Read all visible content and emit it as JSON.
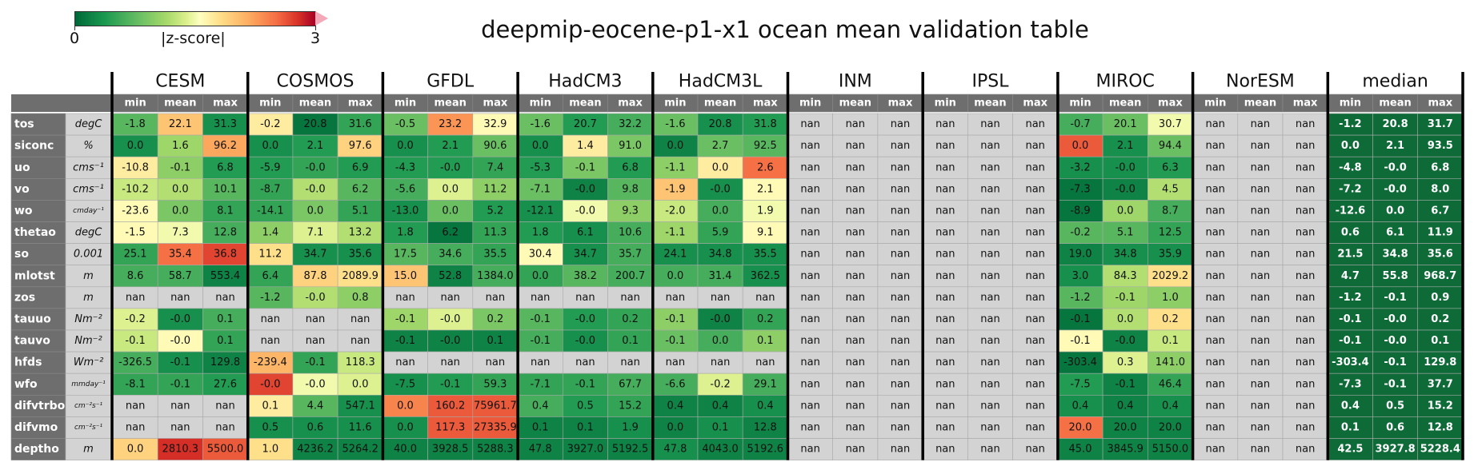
{
  "chart_data": {
    "type": "table",
    "title": "deepmip-eocene-p1-x1 ocean mean validation table",
    "colorbar": {
      "label": "|z-score|",
      "min": "0",
      "max": "3"
    },
    "models": [
      "CESM",
      "COSMOS",
      "GFDL",
      "HadCM3",
      "HadCM3L",
      "INM",
      "IPSL",
      "MIROC",
      "NorESM",
      "median"
    ],
    "stats": [
      "min",
      "mean",
      "max"
    ],
    "rows": [
      {
        "var": "tos",
        "unit": "degC"
      },
      {
        "var": "siconc",
        "unit": "%"
      },
      {
        "var": "uo",
        "unit": "cms⁻¹"
      },
      {
        "var": "vo",
        "unit": "cms⁻¹"
      },
      {
        "var": "wo",
        "unit": "cmday⁻¹"
      },
      {
        "var": "thetao",
        "unit": "degC"
      },
      {
        "var": "so",
        "unit": "0.001"
      },
      {
        "var": "mlotst",
        "unit": "m"
      },
      {
        "var": "zos",
        "unit": "m"
      },
      {
        "var": "tauuo",
        "unit": "Nm⁻²"
      },
      {
        "var": "tauvo",
        "unit": "Nm⁻²"
      },
      {
        "var": "hfds",
        "unit": "Wm⁻²"
      },
      {
        "var": "wfo",
        "unit": "mmday⁻¹"
      },
      {
        "var": "difvtrbo",
        "unit": "cm⁻²s⁻¹"
      },
      {
        "var": "difvmo",
        "unit": "cm⁻²s⁻¹"
      },
      {
        "var": "deptho",
        "unit": "m"
      }
    ],
    "values": {
      "CESM": [
        [
          "-1.8",
          "22.1",
          "31.3"
        ],
        [
          "0.0",
          "1.6",
          "96.2"
        ],
        [
          "-10.8",
          "-0.1",
          "6.8"
        ],
        [
          "-10.2",
          "0.0",
          "10.1"
        ],
        [
          "-23.6",
          "0.0",
          "8.1"
        ],
        [
          "-1.5",
          "7.3",
          "12.8"
        ],
        [
          "25.1",
          "35.4",
          "36.8"
        ],
        [
          "8.6",
          "58.7",
          "553.4"
        ],
        [
          "nan",
          "nan",
          "nan"
        ],
        [
          "-0.2",
          "-0.0",
          "0.1"
        ],
        [
          "-0.1",
          "-0.0",
          "0.1"
        ],
        [
          "-326.5",
          "-0.1",
          "129.8"
        ],
        [
          "-8.1",
          "-0.1",
          "27.6"
        ],
        [
          "nan",
          "nan",
          "nan"
        ],
        [
          "nan",
          "nan",
          "nan"
        ],
        [
          "0.0",
          "2810.3",
          "5500.0"
        ]
      ],
      "COSMOS": [
        [
          "-0.2",
          "20.8",
          "31.6"
        ],
        [
          "0.0",
          "2.1",
          "97.6"
        ],
        [
          "-5.9",
          "-0.0",
          "6.9"
        ],
        [
          "-8.7",
          "-0.0",
          "6.2"
        ],
        [
          "-14.1",
          "0.0",
          "5.1"
        ],
        [
          "1.4",
          "7.1",
          "13.2"
        ],
        [
          "11.2",
          "34.7",
          "35.6"
        ],
        [
          "6.4",
          "87.8",
          "2089.9"
        ],
        [
          "-1.2",
          "-0.0",
          "0.8"
        ],
        [
          "nan",
          "nan",
          "nan"
        ],
        [
          "nan",
          "nan",
          "nan"
        ],
        [
          "-239.4",
          "-0.1",
          "118.3"
        ],
        [
          "-0.0",
          "-0.0",
          "0.0"
        ],
        [
          "0.1",
          "4.4",
          "547.1"
        ],
        [
          "0.5",
          "0.6",
          "11.6"
        ],
        [
          "1.0",
          "4236.2",
          "5264.2"
        ]
      ],
      "GFDL": [
        [
          "-0.5",
          "23.2",
          "32.9"
        ],
        [
          "0.0",
          "2.1",
          "90.6"
        ],
        [
          "-4.3",
          "-0.0",
          "7.4"
        ],
        [
          "-5.6",
          "0.0",
          "11.2"
        ],
        [
          "-13.0",
          "0.0",
          "5.2"
        ],
        [
          "1.8",
          "6.2",
          "11.3"
        ],
        [
          "17.5",
          "34.6",
          "35.5"
        ],
        [
          "15.0",
          "52.8",
          "1384.0"
        ],
        [
          "nan",
          "nan",
          "nan"
        ],
        [
          "-0.1",
          "-0.0",
          "0.2"
        ],
        [
          "-0.1",
          "-0.0",
          "0.1"
        ],
        [
          "nan",
          "nan",
          "nan"
        ],
        [
          "-7.5",
          "-0.1",
          "59.3"
        ],
        [
          "0.0",
          "160.2",
          "75961.7"
        ],
        [
          "0.0",
          "117.3",
          "27335.9"
        ],
        [
          "40.0",
          "3928.5",
          "5288.3"
        ]
      ],
      "HadCM3": [
        [
          "-1.6",
          "20.7",
          "32.2"
        ],
        [
          "0.0",
          "1.4",
          "91.0"
        ],
        [
          "-5.3",
          "-0.1",
          "6.8"
        ],
        [
          "-7.1",
          "-0.0",
          "9.8"
        ],
        [
          "-12.1",
          "-0.0",
          "9.3"
        ],
        [
          "1.8",
          "6.1",
          "10.6"
        ],
        [
          "30.4",
          "34.7",
          "35.7"
        ],
        [
          "0.0",
          "38.2",
          "200.7"
        ],
        [
          "nan",
          "nan",
          "nan"
        ],
        [
          "-0.1",
          "-0.0",
          "0.2"
        ],
        [
          "-0.1",
          "-0.0",
          "0.1"
        ],
        [
          "nan",
          "nan",
          "nan"
        ],
        [
          "-7.1",
          "-0.1",
          "67.7"
        ],
        [
          "0.4",
          "0.5",
          "15.2"
        ],
        [
          "0.1",
          "0.1",
          "1.9"
        ],
        [
          "47.8",
          "3927.0",
          "5192.5"
        ]
      ],
      "HadCM3L": [
        [
          "-1.6",
          "20.8",
          "31.8"
        ],
        [
          "0.0",
          "2.7",
          "92.5"
        ],
        [
          "-1.1",
          "0.0",
          "2.6"
        ],
        [
          "-1.9",
          "-0.0",
          "2.1"
        ],
        [
          "-2.0",
          "0.0",
          "1.9"
        ],
        [
          "-1.1",
          "5.9",
          "9.1"
        ],
        [
          "24.1",
          "34.8",
          "35.5"
        ],
        [
          "0.0",
          "31.4",
          "362.5"
        ],
        [
          "nan",
          "nan",
          "nan"
        ],
        [
          "-0.1",
          "-0.0",
          "0.2"
        ],
        [
          "-0.1",
          "0.0",
          "0.1"
        ],
        [
          "nan",
          "nan",
          "nan"
        ],
        [
          "-6.6",
          "-0.2",
          "29.1"
        ],
        [
          "0.4",
          "0.4",
          "0.4"
        ],
        [
          "0.0",
          "0.1",
          "12.8"
        ],
        [
          "47.8",
          "4043.0",
          "5192.6"
        ]
      ],
      "INM": "nan",
      "IPSL": "nan",
      "MIROC": [
        [
          "-0.7",
          "20.1",
          "30.7"
        ],
        [
          "0.0",
          "2.1",
          "94.4"
        ],
        [
          "-3.2",
          "-0.0",
          "6.3"
        ],
        [
          "-7.3",
          "-0.0",
          "4.5"
        ],
        [
          "-8.9",
          "0.0",
          "8.7"
        ],
        [
          "-0.2",
          "5.1",
          "12.5"
        ],
        [
          "19.0",
          "34.8",
          "35.9"
        ],
        [
          "3.0",
          "84.3",
          "2029.2"
        ],
        [
          "-1.2",
          "-0.1",
          "1.0"
        ],
        [
          "-0.1",
          "0.0",
          "0.2"
        ],
        [
          "-0.1",
          "-0.0",
          "0.1"
        ],
        [
          "-303.4",
          "0.3",
          "141.0"
        ],
        [
          "-7.5",
          "-0.1",
          "46.4"
        ],
        [
          "0.4",
          "0.4",
          "0.4"
        ],
        [
          "20.0",
          "20.0",
          "20.0"
        ],
        [
          "45.0",
          "3845.9",
          "5150.0"
        ]
      ],
      "NorESM": "nan",
      "median": [
        [
          "-1.2",
          "20.8",
          "31.7"
        ],
        [
          "0.0",
          "2.1",
          "93.5"
        ],
        [
          "-4.8",
          "-0.0",
          "6.8"
        ],
        [
          "-7.2",
          "-0.0",
          "8.0"
        ],
        [
          "-12.6",
          "0.0",
          "6.7"
        ],
        [
          "0.6",
          "6.1",
          "11.9"
        ],
        [
          "21.5",
          "34.8",
          "35.6"
        ],
        [
          "4.7",
          "55.8",
          "968.7"
        ],
        [
          "-1.2",
          "-0.1",
          "0.9"
        ],
        [
          "-0.1",
          "-0.0",
          "0.2"
        ],
        [
          "-0.1",
          "-0.0",
          "0.1"
        ],
        [
          "-303.4",
          "-0.1",
          "129.8"
        ],
        [
          "-7.3",
          "-0.1",
          "37.7"
        ],
        [
          "0.4",
          "0.5",
          "15.2"
        ],
        [
          "0.1",
          "0.6",
          "12.8"
        ],
        [
          "42.5",
          "3927.8",
          "5228.4"
        ]
      ]
    },
    "abs_zscore": {
      "CESM": [
        [
          0.7,
          2.0,
          0.3
        ],
        [
          0.3,
          1.1,
          2.2
        ],
        [
          1.7,
          1.0,
          0.4
        ],
        [
          1.3,
          1.2,
          0.7
        ],
        [
          1.6,
          0.9,
          0.5
        ],
        [
          1.6,
          1.5,
          0.6
        ],
        [
          0.5,
          2.5,
          2.7
        ],
        [
          0.6,
          0.6,
          0.2
        ],
        [
          null,
          null,
          null
        ],
        [
          1.4,
          0.3,
          0.6
        ],
        [
          1.3,
          1.6,
          0.5
        ],
        [
          0.6,
          0.3,
          0.2
        ],
        [
          0.5,
          0.5,
          0.4
        ],
        [
          null,
          null,
          null
        ],
        [
          null,
          null,
          null
        ],
        [
          1.9,
          2.8,
          2.6
        ]
      ],
      "COSMOS": [
        [
          1.7,
          0.1,
          0.5
        ],
        [
          0.3,
          0.4,
          1.9
        ],
        [
          0.4,
          0.5,
          0.4
        ],
        [
          0.5,
          1.2,
          0.7
        ],
        [
          0.5,
          0.9,
          0.5
        ],
        [
          1.0,
          1.4,
          1.2
        ],
        [
          1.8,
          0.3,
          0.3
        ],
        [
          0.5,
          1.9,
          1.8
        ],
        [
          0.7,
          1.2,
          1.0
        ],
        [
          null,
          null,
          null
        ],
        [
          null,
          null,
          null
        ],
        [
          2.1,
          0.5,
          1.3
        ],
        [
          2.7,
          1.5,
          1.4
        ],
        [
          1.7,
          0.7,
          0.3
        ],
        [
          0.3,
          0.3,
          0.3
        ],
        [
          1.8,
          0.2,
          0.2
        ]
      ],
      "GFDL": [
        [
          0.8,
          2.3,
          1.6
        ],
        [
          0.3,
          0.4,
          0.8
        ],
        [
          0.4,
          0.4,
          0.5
        ],
        [
          0.6,
          1.4,
          1.0
        ],
        [
          0.3,
          0.8,
          0.4
        ],
        [
          0.4,
          0.1,
          0.5
        ],
        [
          0.7,
          0.6,
          0.5
        ],
        [
          2.0,
          0.2,
          0.6
        ],
        [
          null,
          null,
          null
        ],
        [
          1.1,
          1.4,
          0.9
        ],
        [
          0.2,
          0.2,
          0.2
        ],
        [
          null,
          null,
          null
        ],
        [
          0.3,
          0.4,
          0.5
        ],
        [
          2.4,
          2.6,
          2.6
        ],
        [
          0.3,
          2.6,
          2.6
        ],
        [
          0.2,
          0.2,
          0.2
        ]
      ],
      "HadCM3": [
        [
          0.8,
          0.4,
          0.6
        ],
        [
          0.3,
          1.7,
          0.9
        ],
        [
          0.4,
          0.9,
          0.4
        ],
        [
          0.8,
          0.2,
          0.7
        ],
        [
          0.3,
          1.5,
          1.0
        ],
        [
          0.4,
          0.3,
          0.6
        ],
        [
          1.6,
          0.3,
          0.6
        ],
        [
          0.5,
          0.7,
          0.6
        ],
        [
          null,
          null,
          null
        ],
        [
          0.7,
          0.4,
          0.5
        ],
        [
          0.6,
          0.3,
          0.5
        ],
        [
          null,
          null,
          null
        ],
        [
          0.5,
          0.5,
          0.6
        ],
        [
          0.6,
          0.4,
          0.5
        ],
        [
          0.2,
          0.2,
          0.3
        ],
        [
          0.2,
          0.2,
          0.2
        ]
      ],
      "HadCM3L": [
        [
          0.8,
          0.3,
          0.4
        ],
        [
          0.2,
          0.8,
          0.7
        ],
        [
          1.0,
          1.7,
          2.5
        ],
        [
          2.0,
          0.3,
          1.6
        ],
        [
          1.3,
          0.6,
          1.5
        ],
        [
          1.1,
          0.5,
          1.6
        ],
        [
          0.3,
          0.3,
          0.3
        ],
        [
          0.6,
          0.6,
          0.3
        ],
        [
          null,
          null,
          null
        ],
        [
          1.0,
          0.2,
          0.5
        ],
        [
          0.8,
          0.6,
          1.0
        ],
        [
          null,
          null,
          null
        ],
        [
          0.6,
          1.4,
          0.6
        ],
        [
          0.2,
          0.2,
          0.3
        ],
        [
          0.2,
          0.3,
          0.2
        ],
        [
          0.3,
          0.2,
          0.2
        ]
      ],
      "MIROC": [
        [
          0.6,
          0.8,
          1.5
        ],
        [
          2.6,
          0.3,
          0.8
        ],
        [
          0.3,
          0.3,
          0.4
        ],
        [
          0.1,
          0.2,
          1.2
        ],
        [
          0.1,
          1.1,
          0.6
        ],
        [
          0.7,
          0.7,
          0.5
        ],
        [
          0.2,
          0.3,
          0.3
        ],
        [
          0.3,
          1.2,
          1.8
        ],
        [
          0.7,
          1.1,
          1.0
        ],
        [
          0.1,
          1.2,
          1.8
        ],
        [
          1.6,
          0.2,
          1.3
        ],
        [
          0.1,
          1.4,
          1.0
        ],
        [
          0.4,
          0.2,
          0.5
        ],
        [
          0.3,
          0.2,
          0.3
        ],
        [
          2.5,
          0.2,
          0.2
        ],
        [
          0.2,
          0.2,
          0.2
        ]
      ]
    }
  }
}
